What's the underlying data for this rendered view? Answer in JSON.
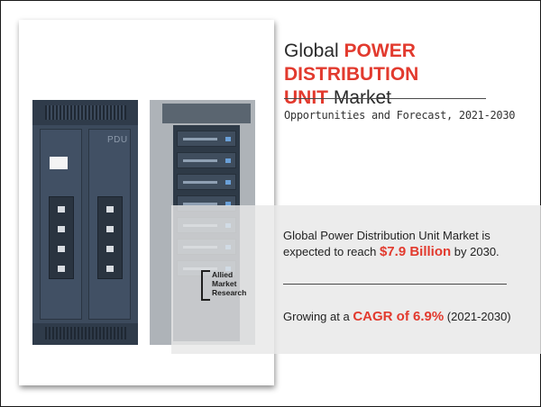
{
  "title": {
    "prefix": "Global ",
    "highlight_line1": "POWER DISTRIBUTION",
    "highlight_line2": "UNIT",
    "suffix": " Market"
  },
  "subtitle": "Opportunities and Forecast, 2021-2030",
  "illustration": {
    "pdu_label": "PDU"
  },
  "logo": {
    "line1": "Allied",
    "line2": "Market",
    "line3": "Research"
  },
  "stat_market_size": {
    "lead": "Global Power Distribution Unit Market is expected to reach ",
    "value": "$7.9 Billion",
    "tail": " by 2030."
  },
  "stat_cagr": {
    "lead": "Growing at a ",
    "value": "CAGR of 6.9%",
    "tail": " (2021-2030)"
  },
  "colors": {
    "accent": "#e23a2e",
    "pdu_body": "#3c4a5c",
    "rack_body": "#aeb3b8",
    "overlay": "#e8e8e8"
  }
}
